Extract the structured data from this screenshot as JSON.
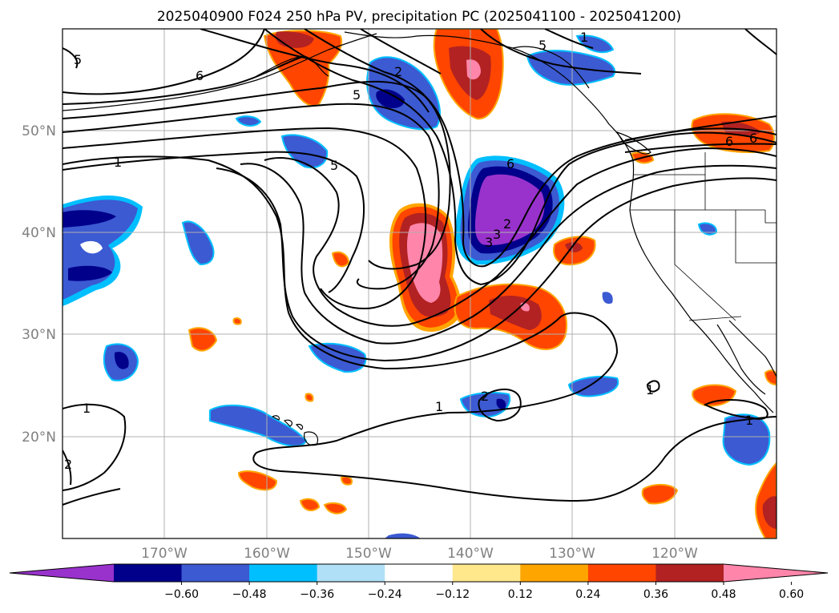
{
  "title": "2025040900 F024 250 hPa PV, precipitation PC (2025041100 - 2025041200)",
  "lon_labels": [
    "170°W",
    "160°W",
    "150°W",
    "140°W",
    "130°W",
    "120°W"
  ],
  "lat_labels": [
    "50°N",
    "40°N",
    "30°N",
    "20°N"
  ],
  "colorbar": {
    "ticks": [
      "−0.60",
      "−0.48",
      "−0.36",
      "−0.24",
      "−0.12",
      "0.12",
      "0.24",
      "0.36",
      "0.48",
      "0.60"
    ],
    "colors": [
      "#9932cc",
      "#00008b",
      "#3c5ad2",
      "#00bfff",
      "#b0e0f8",
      "#ffffff",
      "#ffe88c",
      "#ffa500",
      "#ff4500",
      "#b22222",
      "#ff85aa"
    ]
  },
  "contour_labels": [
    "5",
    "6",
    "1",
    "5",
    "5",
    "6",
    "3",
    "2",
    "3",
    "2",
    "5",
    "6",
    "1",
    "1",
    "2",
    "1",
    "1",
    "2",
    "6",
    "1"
  ],
  "colors": {
    "grid": "#b0b0b0",
    "coast": "#000000",
    "contour": "#000000"
  }
}
